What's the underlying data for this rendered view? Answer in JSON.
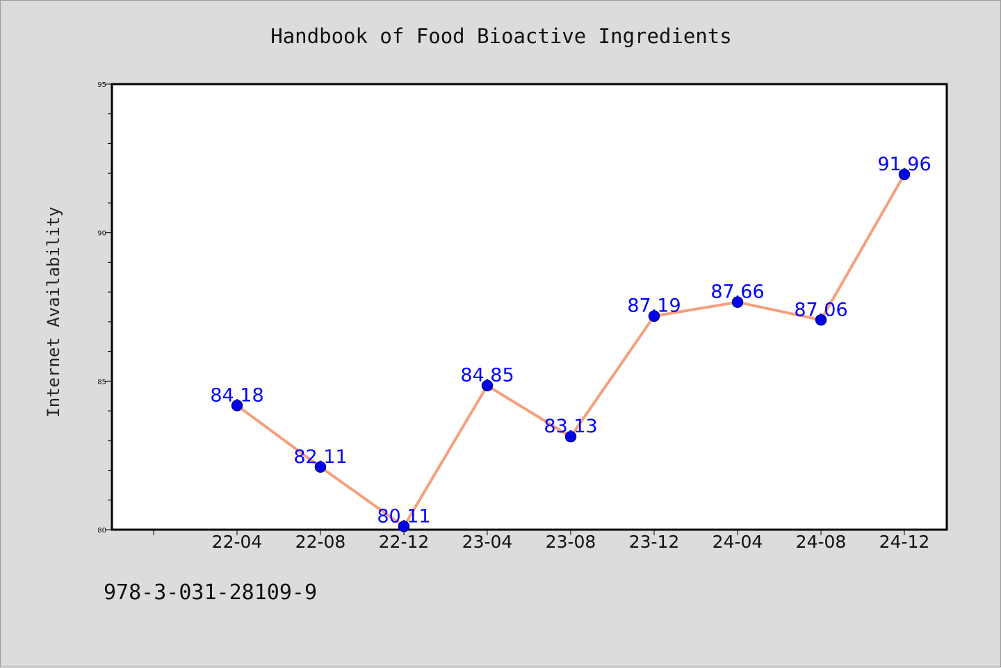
{
  "colors": {
    "background": "#dcdcdc",
    "plot_background": "#ffffff",
    "line": "#f4a07e",
    "marker": "#0000ee",
    "label": "#0000ff"
  },
  "footer": {
    "isbn": "978-3-031-28109-9"
  },
  "chart_data": {
    "type": "line",
    "title": "Handbook of Food Bioactive Ingredients",
    "xlabel": "",
    "ylabel": "Internet Availability",
    "categories": [
      "22-04",
      "22-08",
      "22-12",
      "23-04",
      "23-08",
      "23-12",
      "24-04",
      "24-08",
      "24-12"
    ],
    "series": [
      {
        "values": [
          84.18,
          82.11,
          80.11,
          84.85,
          83.13,
          87.19,
          87.66,
          87.06,
          91.96
        ]
      }
    ],
    "data_labels": [
      "84.18",
      "82.11",
      "80.11",
      "84.85",
      "83.13",
      "87.19",
      "87.66",
      "87.06",
      "91.96"
    ],
    "ylim": [
      80,
      95
    ],
    "yticks": [
      80,
      85,
      90,
      95
    ],
    "grid": false,
    "legend": "none"
  }
}
